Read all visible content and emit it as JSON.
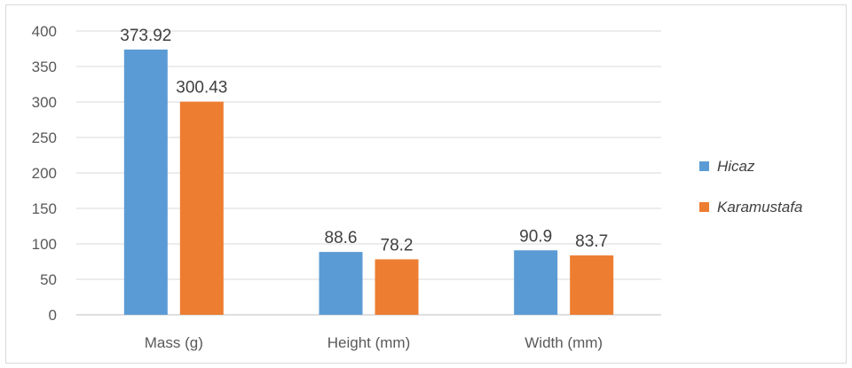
{
  "chart_data": {
    "type": "bar",
    "title": "",
    "xlabel": "",
    "ylabel": "",
    "categories": [
      "Mass (g)",
      "Height (mm)",
      "Width (mm)"
    ],
    "series": [
      {
        "name": "Hicaz",
        "values": [
          373.92,
          88.6,
          90.9
        ],
        "labels": [
          "373.92",
          "88.6",
          "90.9"
        ],
        "color": "#5b9bd5"
      },
      {
        "name": "Karamustafa",
        "values": [
          300.43,
          78.2,
          83.7
        ],
        "labels": [
          "300.43",
          "78.2",
          "83.7"
        ],
        "color": "#ed7d31"
      }
    ],
    "ylim": [
      0,
      400
    ],
    "yticks": [
      0,
      50,
      100,
      150,
      200,
      250,
      300,
      350,
      400
    ],
    "grid": true,
    "legend_position": "right",
    "data_labels": true
  }
}
